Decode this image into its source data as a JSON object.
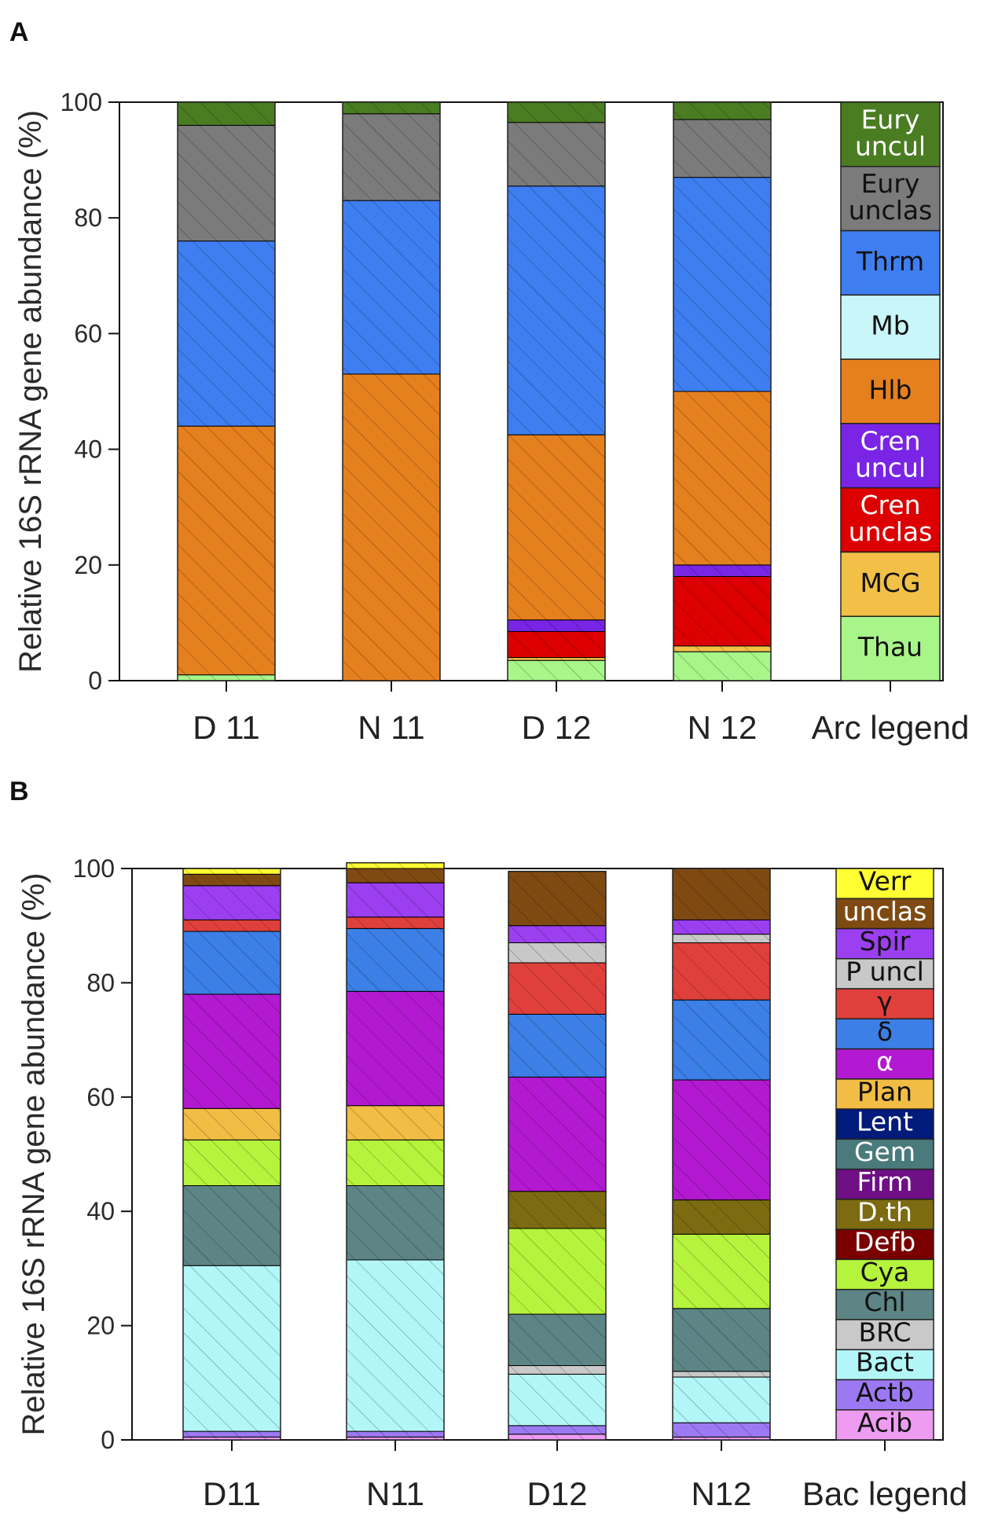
{
  "colors": {
    "Eury uncul": "#4a7d22",
    "Eury unclas": "#7b7b7b",
    "Thrm": "#3f7ef0",
    "Mb": "#c9f6f8",
    "Hlb": "#e5801f",
    "Cren uncul": "#7a24e6",
    "Cren unclas": "#dc0000",
    "MCG": "#f2c047",
    "Thau": "#a8f58a",
    "Verr": "#ffff33",
    "unclas": "#7f4a12",
    "Spir": "#9b3ff0",
    "P uncl": "#c8c8c8",
    "γ": "#e0403c",
    "δ": "#3c7fe6",
    "α": "#b219d0",
    "Plan": "#f2bd45",
    "Lent": "#001b7a",
    "Gem": "#4a7a7c",
    "Firm": "#6e0f85",
    "D.th": "#7d6b12",
    "Defb": "#7a0000",
    "Cya": "#b6f33c",
    "Chl": "#5d8585",
    "BRC": "#c9c9c9",
    "Bact": "#b3f6f8",
    "Actb": "#9c79f2",
    "Acib": "#ee9cf2"
  },
  "chart_data": [
    {
      "panel": "A",
      "type": "bar",
      "stacked": true,
      "ylabel": "Relative 16S rRNA gene abundance (%)",
      "ylim": [
        0,
        100
      ],
      "yticks": [
        0,
        20,
        40,
        60,
        80,
        100
      ],
      "categories": [
        "D 11",
        "N 11",
        "D 12",
        "N 12"
      ],
      "legend_category": "Arc legend",
      "legend": [
        "Eury uncul",
        "Eury unclas",
        "Thrm",
        "Mb",
        "Hlb",
        "Cren uncul",
        "Cren unclas",
        "MCG",
        "Thau"
      ],
      "legend_labels": [
        [
          "Eury",
          "uncul"
        ],
        [
          "Eury",
          "unclas"
        ],
        [
          "Thrm"
        ],
        [
          "Mb"
        ],
        [
          "Hlb"
        ],
        [
          "Cren",
          "uncul"
        ],
        [
          "Cren",
          "unclas"
        ],
        [
          "MCG"
        ],
        [
          "Thau"
        ]
      ],
      "series": [
        {
          "name": "Thau",
          "values": [
            1,
            0,
            3.5,
            5
          ]
        },
        {
          "name": "MCG",
          "values": [
            0,
            0,
            0.5,
            1
          ]
        },
        {
          "name": "Cren unclas",
          "values": [
            0,
            0,
            4.5,
            12
          ]
        },
        {
          "name": "Cren uncul",
          "values": [
            0,
            0,
            2,
            2
          ]
        },
        {
          "name": "Hlb",
          "values": [
            43,
            53,
            32,
            30
          ]
        },
        {
          "name": "Mb",
          "values": [
            0,
            0,
            0,
            0
          ]
        },
        {
          "name": "Thrm",
          "values": [
            32,
            30,
            43,
            37
          ]
        },
        {
          "name": "Eury unclas",
          "values": [
            20,
            15,
            11,
            10
          ]
        },
        {
          "name": "Eury uncul",
          "values": [
            4,
            2,
            3.5,
            3
          ]
        }
      ]
    },
    {
      "panel": "B",
      "type": "bar",
      "stacked": true,
      "ylabel": "Relative 16S rRNA gene abundance (%)",
      "ylim": [
        0,
        100
      ],
      "yticks": [
        0,
        20,
        40,
        60,
        80,
        100
      ],
      "categories": [
        "D11",
        "N11",
        "D12",
        "N12"
      ],
      "legend_category": "Bac legend",
      "legend": [
        "Verr",
        "unclas",
        "Spir",
        "P uncl",
        "γ",
        "δ",
        "α",
        "Plan",
        "Lent",
        "Gem",
        "Firm",
        "D.th",
        "Defb",
        "Cya",
        "Chl",
        "BRC",
        "Bact",
        "Actb",
        "Acib"
      ],
      "series": [
        {
          "name": "Acib",
          "values": [
            0.5,
            0.5,
            1,
            0.5
          ]
        },
        {
          "name": "Actb",
          "values": [
            1,
            1,
            1.5,
            2.5
          ]
        },
        {
          "name": "Bact",
          "values": [
            29,
            30,
            9,
            8
          ]
        },
        {
          "name": "BRC",
          "values": [
            0,
            0,
            1.5,
            1
          ]
        },
        {
          "name": "Chl",
          "values": [
            14,
            13,
            9,
            11
          ]
        },
        {
          "name": "Cya",
          "values": [
            8,
            8,
            15,
            13
          ]
        },
        {
          "name": "Defb",
          "values": [
            0,
            0,
            0,
            0
          ]
        },
        {
          "name": "D.th",
          "values": [
            0,
            0,
            6.5,
            6
          ]
        },
        {
          "name": "Firm",
          "values": [
            0,
            0,
            0,
            0
          ]
        },
        {
          "name": "Gem",
          "values": [
            0,
            0,
            0,
            0
          ]
        },
        {
          "name": "Lent",
          "values": [
            0,
            0,
            0,
            0
          ]
        },
        {
          "name": "Plan",
          "values": [
            5.5,
            6,
            0,
            0
          ]
        },
        {
          "name": "α",
          "values": [
            20,
            20,
            20,
            21
          ]
        },
        {
          "name": "δ",
          "values": [
            11,
            11,
            11,
            14
          ]
        },
        {
          "name": "γ",
          "values": [
            2,
            2,
            9,
            10
          ]
        },
        {
          "name": "P uncl",
          "values": [
            0,
            0,
            3.5,
            1.5
          ]
        },
        {
          "name": "Spir",
          "values": [
            6,
            6,
            3,
            2.5
          ]
        },
        {
          "name": "unclas",
          "values": [
            2,
            2.5,
            9.5,
            9
          ]
        },
        {
          "name": "Verr",
          "values": [
            1,
            1,
            0,
            0
          ]
        }
      ]
    }
  ],
  "panel_letters": [
    "A",
    "B"
  ]
}
